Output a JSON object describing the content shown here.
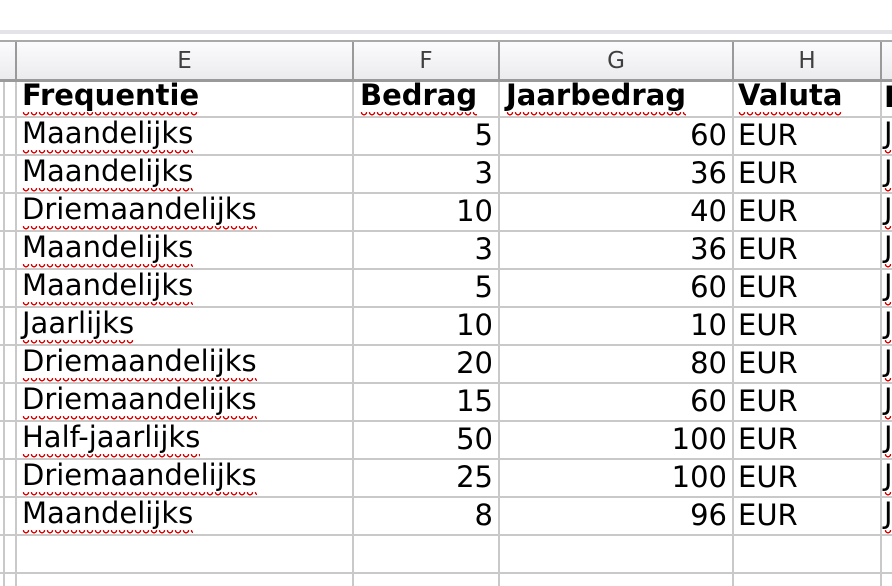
{
  "app": {
    "type": "spreadsheet-grid-view",
    "colors": {
      "grid_line": "#c9c9c9",
      "header_separator": "#9a9a9a",
      "header_text": "#3f3f3f",
      "cell_text": "#000000",
      "spellcheck_squiggle": "#e60000"
    }
  },
  "column_header_strip": {
    "labels": [
      "",
      "E",
      "F",
      "G",
      "H",
      ""
    ]
  },
  "table": {
    "header_row": {
      "frequentie": "Frequentie",
      "bedrag": "Bedrag",
      "jaarbedrag": "Jaarbedrag",
      "valuta": "Valuta",
      "i_fragment": "I"
    },
    "rows": [
      {
        "frequentie": "Maandelijks",
        "bedrag": "5",
        "jaarbedrag": "60",
        "valuta": "EUR",
        "i_fragment": "J"
      },
      {
        "frequentie": "Maandelijks",
        "bedrag": "3",
        "jaarbedrag": "36",
        "valuta": "EUR",
        "i_fragment": "J"
      },
      {
        "frequentie": "Driemaandelijks",
        "bedrag": "10",
        "jaarbedrag": "40",
        "valuta": "EUR",
        "i_fragment": "J"
      },
      {
        "frequentie": "Maandelijks",
        "bedrag": "3",
        "jaarbedrag": "36",
        "valuta": "EUR",
        "i_fragment": "J"
      },
      {
        "frequentie": "Maandelijks",
        "bedrag": "5",
        "jaarbedrag": "60",
        "valuta": "EUR",
        "i_fragment": "J"
      },
      {
        "frequentie": "Jaarlijks",
        "bedrag": "10",
        "jaarbedrag": "10",
        "valuta": "EUR",
        "i_fragment": "J"
      },
      {
        "frequentie": "Driemaandelijks",
        "bedrag": "20",
        "jaarbedrag": "80",
        "valuta": "EUR",
        "i_fragment": "J"
      },
      {
        "frequentie": "Driemaandelijks",
        "bedrag": "15",
        "jaarbedrag": "60",
        "valuta": "EUR",
        "i_fragment": "J"
      },
      {
        "frequentie": "Half-jaarlijks",
        "bedrag": "50",
        "jaarbedrag": "100",
        "valuta": "EUR",
        "i_fragment": "J"
      },
      {
        "frequentie": "Driemaandelijks",
        "bedrag": "25",
        "jaarbedrag": "100",
        "valuta": "EUR",
        "i_fragment": "J"
      },
      {
        "frequentie": "Maandelijks",
        "bedrag": "8",
        "jaarbedrag": "96",
        "valuta": "EUR",
        "i_fragment": "J"
      }
    ],
    "trailing_empty_rows": 2
  }
}
